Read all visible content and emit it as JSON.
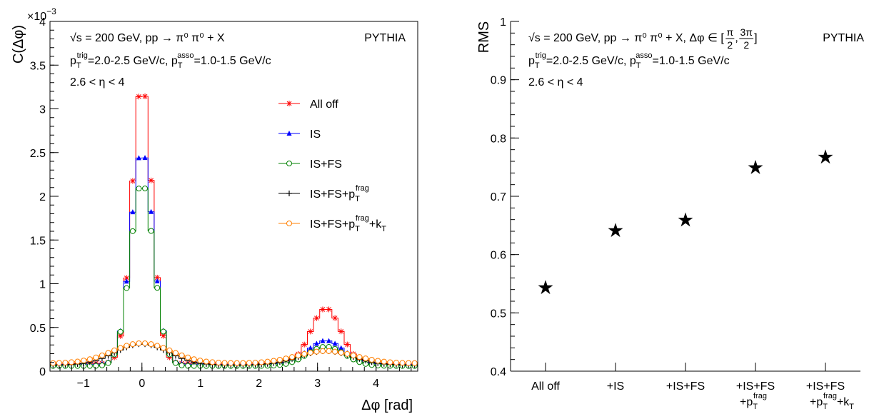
{
  "chart_data": [
    {
      "type": "line",
      "panel": "left",
      "title": "",
      "xlabel": "Δφ [rad]",
      "ylabel": "C(Δφ)",
      "y_multiplier": "×10⁻³",
      "xlim": [
        -1.571,
        4.712
      ],
      "ylim": [
        0,
        4.0
      ],
      "x_ticks": [
        -1,
        0,
        1,
        2,
        3,
        4
      ],
      "y_ticks": [
        0,
        0.5,
        1,
        1.5,
        2,
        2.5,
        3,
        3.5,
        4
      ],
      "grid": false,
      "legend_position": "top-right",
      "annotations": {
        "line1": "√s = 200 GeV, pp → π⁰ π⁰ + X",
        "generator": "PYTHIA",
        "line2": "pT trig=2.0-2.5 GeV/c, pT asso=1.0-1.5 GeV/c",
        "line3": "2.6 < η < 4"
      },
      "series": [
        {
          "name": "All off",
          "legend_text": "All off",
          "color": "#ff0000",
          "marker": "asterisk",
          "near_peak": 3.2,
          "near_width": 0.17,
          "away_peak": 0.63,
          "away_width": 0.25,
          "pedestal": 0.09
        },
        {
          "name": "IS",
          "legend_text": "IS",
          "color": "#0000ff",
          "marker": "triangle",
          "near_peak": 2.45,
          "near_width": 0.19,
          "away_peak": 0.27,
          "away_width": 0.3,
          "pedestal": 0.08
        },
        {
          "name": "IS+FS",
          "legend_text": "IS+FS",
          "color": "#008000",
          "marker": "open-circle",
          "near_peak": 2.1,
          "near_width": 0.2,
          "away_peak": 0.22,
          "away_width": 0.32,
          "pedestal": 0.06
        },
        {
          "name": "IS+FS+pT frag",
          "legend_text": "IS+FS+p",
          "legend_sub": "T",
          "legend_sup": "frag",
          "legend_suffix": "",
          "color": "#000000",
          "marker": "plus",
          "near_peak": 0.24,
          "near_width": 0.45,
          "away_peak": 0.16,
          "away_width": 0.45,
          "pedestal": 0.07
        },
        {
          "name": "IS+FS+pT frag+kT",
          "legend_text": "IS+FS+p",
          "legend_sub": "T",
          "legend_sup": "frag",
          "legend_suffix": "+k",
          "legend_sub2": "T",
          "color": "#ff7f00",
          "marker": "open-circle",
          "near_peak": 0.23,
          "near_width": 0.5,
          "away_peak": 0.14,
          "away_width": 0.5,
          "pedestal": 0.09
        }
      ]
    },
    {
      "type": "scatter",
      "panel": "right",
      "title": "",
      "xlabel": "",
      "ylabel": "RMS",
      "ylim": [
        0.4,
        1.0
      ],
      "y_ticks": [
        0.4,
        0.5,
        0.6,
        0.7,
        0.8,
        0.9,
        1
      ],
      "grid": false,
      "marker": "star",
      "color": "#000000",
      "annotations": {
        "line1": "√s = 200 GeV, pp → π⁰ π⁰ + X, Δφ ∈ [π/2, 3π/2]",
        "generator": "PYTHIA",
        "line2": "pT trig=2.0-2.5 GeV/c, pT asso=1.0-1.5 GeV/c",
        "line3": "2.6 < η < 4"
      },
      "categories": [
        "All off",
        "+IS",
        "+IS+FS",
        "+IS+FS +pT frag",
        "+IS+FS +pT frag+kT"
      ],
      "category_lines": [
        {
          "line1": "All off",
          "line2": ""
        },
        {
          "line1": "+IS",
          "line2": ""
        },
        {
          "line1": "+IS+FS",
          "line2": ""
        },
        {
          "line1": "+IS+FS",
          "line2": "+p",
          "sub": "T",
          "sup": "frag",
          "suffix": ""
        },
        {
          "line1": "+IS+FS",
          "line2": "+p",
          "sub": "T",
          "sup": "frag",
          "suffix": "+k",
          "sub2": "T"
        }
      ],
      "values": [
        0.543,
        0.641,
        0.659,
        0.749,
        0.767
      ]
    }
  ],
  "text": {
    "left_ylabel": "C(Δφ)",
    "left_exp_base": "×10",
    "left_exp_power": "−3",
    "left_xlabel": "Δφ [rad]",
    "left_info1": "√s = 200 GeV, pp → π⁰ π⁰ + X",
    "left_generator": "PYTHIA",
    "info_p1": "p",
    "info_sub1": "T",
    "info_sup1": "trig",
    "info_mid": "=2.0-2.5 GeV/c, p",
    "info_sub2": "T",
    "info_sup2": "asso",
    "info_end": "=1.0-1.5 GeV/c",
    "info_eta": "2.6 < η < 4",
    "right_ylabel": "RMS",
    "right_info1_main": "√s = 200 GeV, pp → π⁰ π⁰ + X, Δφ ∈ [",
    "right_frac1_num": "π",
    "right_frac1_den": "2",
    "right_frac_sep": ",",
    "right_frac2_num": "3π",
    "right_frac2_den": "2",
    "right_info1_close": "]",
    "right_generator": "PYTHIA"
  }
}
